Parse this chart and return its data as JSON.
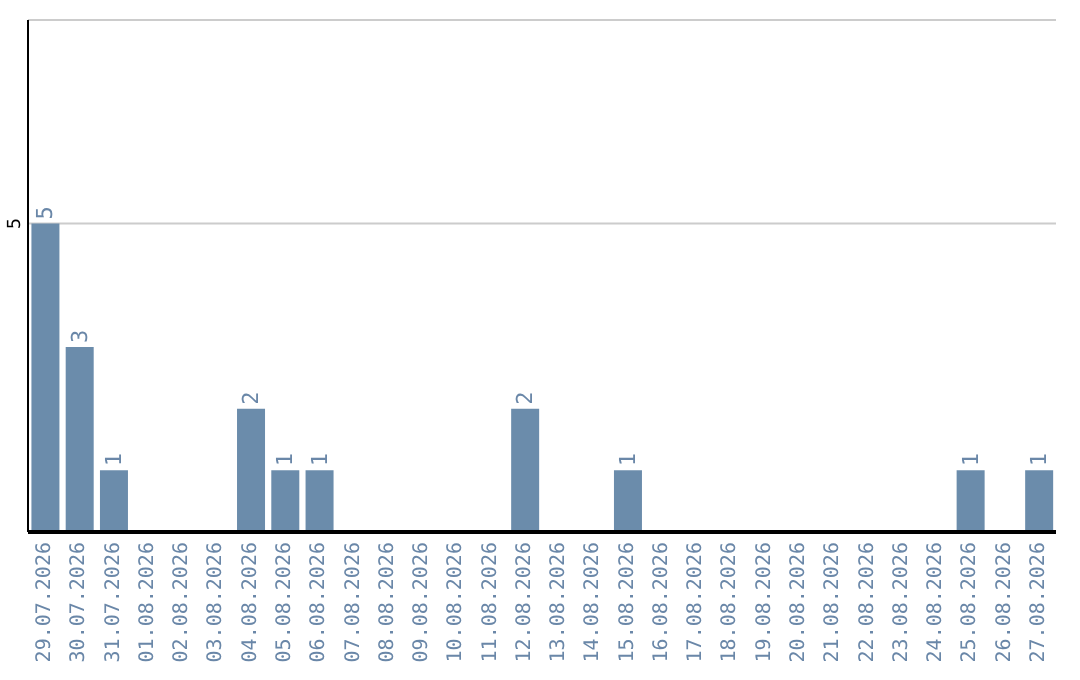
{
  "chart_data": {
    "type": "bar",
    "categories": [
      "29.07.2026",
      "30.07.2026",
      "31.07.2026",
      "01.08.2026",
      "02.08.2026",
      "03.08.2026",
      "04.08.2026",
      "05.08.2026",
      "06.08.2026",
      "07.08.2026",
      "08.08.2026",
      "09.08.2026",
      "10.08.2026",
      "11.08.2026",
      "12.08.2026",
      "13.08.2026",
      "14.08.2026",
      "15.08.2026",
      "16.08.2026",
      "17.08.2026",
      "18.08.2026",
      "19.08.2026",
      "20.08.2026",
      "21.08.2026",
      "22.08.2026",
      "23.08.2026",
      "24.08.2026",
      "25.08.2026",
      "26.08.2026",
      "27.08.2026"
    ],
    "values": [
      5,
      3,
      1,
      0,
      0,
      0,
      2,
      1,
      1,
      0,
      0,
      0,
      0,
      0,
      2,
      0,
      0,
      1,
      0,
      0,
      0,
      0,
      0,
      0,
      0,
      0,
      0,
      1,
      0,
      1
    ],
    "value_labels": [
      "5",
      "3",
      "1",
      null,
      null,
      null,
      "2",
      "1",
      "1",
      null,
      null,
      null,
      null,
      null,
      "2",
      null,
      null,
      "1",
      null,
      null,
      null,
      null,
      null,
      null,
      null,
      null,
      null,
      "1",
      null,
      "1"
    ],
    "color": "#6b8cab",
    "ylim": [
      0,
      8.3
    ],
    "yticks": [
      5
    ],
    "grid": "y"
  }
}
